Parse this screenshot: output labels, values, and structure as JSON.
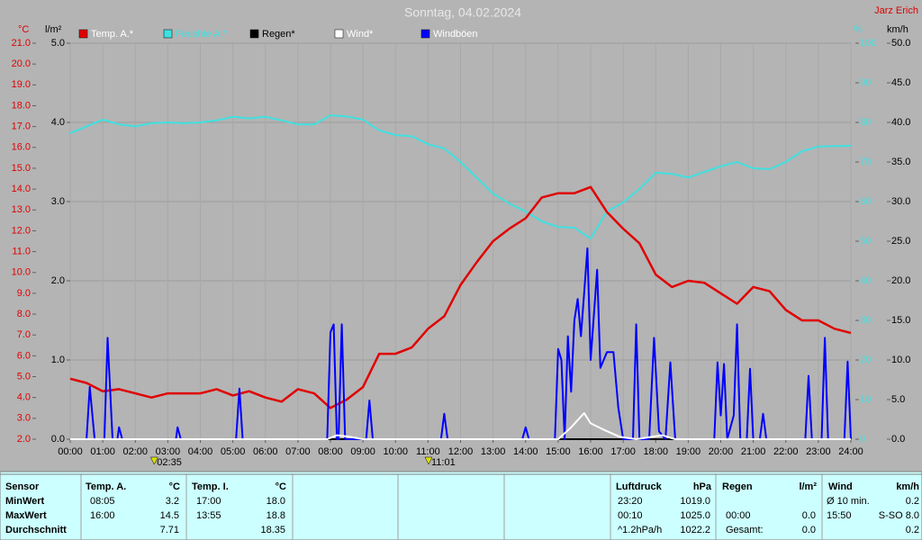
{
  "title": "Sonntag, 04.02.2024",
  "author": "Jarz Erich",
  "chart_data": {
    "type": "line",
    "ylabel": "°C",
    "rain_label": "l/m²",
    "y2label": "%",
    "wind_label": "km/h",
    "x": [
      0,
      0.5,
      1,
      1.5,
      2,
      2.5,
      3,
      3.5,
      4,
      4.5,
      5,
      5.5,
      6,
      6.5,
      7,
      7.5,
      8,
      8.5,
      9,
      9.5,
      10,
      10.5,
      11,
      11.5,
      12,
      12.5,
      13,
      13.5,
      14,
      14.5,
      15,
      15.5,
      16,
      16.5,
      17,
      17.5,
      18,
      18.5,
      19,
      19.5,
      20,
      20.5,
      21,
      21.5,
      22,
      22.5,
      23,
      23.5,
      24
    ],
    "xlim": [
      0,
      24
    ],
    "xticks": [
      {
        "value": 0,
        "label": "00:00"
      },
      {
        "value": 1,
        "label": "01:00"
      },
      {
        "value": 2,
        "label": "02:00"
      },
      {
        "value": 3,
        "label": "03:00"
      },
      {
        "value": 4,
        "label": "04:00"
      },
      {
        "value": 5,
        "label": "05:00"
      },
      {
        "value": 6,
        "label": "06:00"
      },
      {
        "value": 7,
        "label": "07:00"
      },
      {
        "value": 8,
        "label": "08:00"
      },
      {
        "value": 9,
        "label": "09:00"
      },
      {
        "value": 10,
        "label": "10:00"
      },
      {
        "value": 11,
        "label": "11:00"
      },
      {
        "value": 12,
        "label": "12:00"
      },
      {
        "value": 13,
        "label": "13:00"
      },
      {
        "value": 14,
        "label": "14:00"
      },
      {
        "value": 15,
        "label": "15:00"
      },
      {
        "value": 16,
        "label": "16:00"
      },
      {
        "value": 17,
        "label": "17:00"
      },
      {
        "value": 18,
        "label": "18:00"
      },
      {
        "value": 19,
        "label": "19:00"
      },
      {
        "value": 20,
        "label": "20:00"
      },
      {
        "value": 21,
        "label": "21:00"
      },
      {
        "value": 22,
        "label": "22:00"
      },
      {
        "value": 23,
        "label": "23:00"
      },
      {
        "value": 24,
        "label": "24:00"
      }
    ],
    "ylim": [
      2,
      21
    ],
    "yticks": [
      {
        "value": 2,
        "label": "2.0"
      },
      {
        "value": 3,
        "label": "3.0"
      },
      {
        "value": 4,
        "label": "4.0"
      },
      {
        "value": 5,
        "label": "5.0"
      },
      {
        "value": 6,
        "label": "6.0"
      },
      {
        "value": 7,
        "label": "7.0"
      },
      {
        "value": 8,
        "label": "8.0"
      },
      {
        "value": 9,
        "label": "9.0"
      },
      {
        "value": 10,
        "label": "10.0"
      },
      {
        "value": 11,
        "label": "11.0"
      },
      {
        "value": 12,
        "label": "12.0"
      },
      {
        "value": 13,
        "label": "13.0"
      },
      {
        "value": 14,
        "label": "14.0"
      },
      {
        "value": 15,
        "label": "15.0"
      },
      {
        "value": 16,
        "label": "16.0"
      },
      {
        "value": 17,
        "label": "17.0"
      },
      {
        "value": 18,
        "label": "18.0"
      },
      {
        "value": 19,
        "label": "19.0"
      },
      {
        "value": 20,
        "label": "20.0"
      },
      {
        "value": 21,
        "label": "21.0"
      }
    ],
    "rain_lim": [
      0,
      5
    ],
    "rain_ticks": [
      {
        "value": 0,
        "label": "0.0"
      },
      {
        "value": 1,
        "label": "1.0"
      },
      {
        "value": 2,
        "label": "2.0"
      },
      {
        "value": 3,
        "label": "3.0"
      },
      {
        "value": 4,
        "label": "4.0"
      },
      {
        "value": 5,
        "label": "5.0"
      }
    ],
    "y2lim": [
      0,
      100
    ],
    "y2ticks": [
      0,
      10,
      20,
      30,
      40,
      50,
      60,
      70,
      80,
      90,
      100
    ],
    "wind_lim": [
      0,
      50
    ],
    "wind_ticks": [
      {
        "value": 0,
        "label": "0.0"
      },
      {
        "value": 5,
        "label": "5.0"
      },
      {
        "value": 10,
        "label": "10.0"
      },
      {
        "value": 15,
        "label": "15.0"
      },
      {
        "value": 20,
        "label": "20.0"
      },
      {
        "value": 25,
        "label": "25.0"
      },
      {
        "value": 30,
        "label": "30.0"
      },
      {
        "value": 35,
        "label": "35.0"
      },
      {
        "value": 40,
        "label": "40.0"
      },
      {
        "value": 45,
        "label": "45.0"
      },
      {
        "value": 50,
        "label": "50.0"
      }
    ],
    "grid": true,
    "series": [
      {
        "name": "Temp. A.*",
        "color": "#e00000",
        "axis": "y",
        "values": [
          4.9,
          4.7,
          4.3,
          4.4,
          4.2,
          4.0,
          4.2,
          4.2,
          4.2,
          4.4,
          4.1,
          4.3,
          4.0,
          3.8,
          4.4,
          4.2,
          3.5,
          3.9,
          4.5,
          6.1,
          6.1,
          6.4,
          7.3,
          7.9,
          9.4,
          10.5,
          11.5,
          12.1,
          12.6,
          13.6,
          13.8,
          13.8,
          14.1,
          12.9,
          12.1,
          11.4,
          9.9,
          9.3,
          9.6,
          9.5,
          9.0,
          8.5,
          9.3,
          9.1,
          8.2,
          7.7,
          7.7,
          7.3,
          7.1
        ]
      },
      {
        "name": "Feuchte A.*",
        "color": "#40e0e0",
        "axis": "y2",
        "values": [
          77.3,
          79,
          80.7,
          79.5,
          79,
          79.8,
          80,
          79.8,
          80,
          80.5,
          81.4,
          81,
          81.4,
          80.5,
          79.5,
          79.5,
          81.8,
          81.5,
          80.7,
          78,
          76.8,
          76.5,
          74.5,
          73.4,
          70,
          66,
          62,
          59.5,
          57.5,
          55,
          53.6,
          53.4,
          50.7,
          57.5,
          59.8,
          63.2,
          67.3,
          67,
          66.1,
          67.5,
          68.9,
          70,
          68.4,
          68.2,
          70,
          72.7,
          73.9,
          74,
          74.1
        ]
      },
      {
        "name": "Regen*",
        "color": "#000000",
        "axis": "rain",
        "x": [
          0,
          24
        ],
        "values": [
          0,
          0
        ]
      },
      {
        "name": "Wind*",
        "color": "#ffffff",
        "axis": "wind",
        "x": [
          0,
          7.9,
          8.2,
          8.6,
          9,
          15,
          15.4,
          15.8,
          16,
          16.4,
          16.9,
          17.4,
          18.2,
          18.6,
          24
        ],
        "values": [
          0,
          0,
          0.5,
          0.3,
          0,
          0,
          1.5,
          3.3,
          2,
          1.2,
          0.3,
          0,
          0.5,
          0,
          0
        ]
      },
      {
        "name": "Windböen",
        "color": "#0000ff",
        "axis": "wind",
        "x": [
          0,
          0.5,
          0.6,
          0.75,
          1.05,
          1.15,
          1.3,
          1.45,
          1.5,
          1.6,
          3.25,
          3.3,
          3.4,
          5.1,
          5.2,
          5.3,
          7.9,
          8,
          8.1,
          8.2,
          8.25,
          8.35,
          8.45,
          9.1,
          9.2,
          9.3,
          11.4,
          11.5,
          11.6,
          13.9,
          14,
          14.1,
          14.9,
          15,
          15.1,
          15.2,
          15.3,
          15.4,
          15.5,
          15.6,
          15.7,
          15.8,
          15.9,
          16,
          16.2,
          16.3,
          16.5,
          16.7,
          16.85,
          17,
          17.3,
          17.4,
          17.5,
          17.8,
          17.95,
          18.1,
          18.3,
          18.45,
          18.6,
          19.8,
          19.9,
          20,
          20.1,
          20.2,
          20.4,
          20.5,
          20.6,
          20.8,
          20.9,
          21,
          21.2,
          21.3,
          21.4,
          22.6,
          22.7,
          22.8,
          23.1,
          23.2,
          23.3,
          23.8,
          23.9,
          24
        ],
        "values": [
          0,
          0,
          6.6,
          0,
          0,
          12.8,
          0,
          0,
          1.5,
          0,
          0,
          1.5,
          0,
          0,
          6.4,
          0,
          0,
          13.5,
          14.5,
          0,
          0,
          14.5,
          0,
          0,
          4.9,
          0,
          0,
          3.2,
          0,
          0,
          1.5,
          0,
          0,
          11.4,
          10,
          0,
          13,
          6,
          15,
          17.7,
          13,
          18.5,
          24.1,
          10,
          21.4,
          9,
          11,
          11,
          4,
          0,
          0,
          14.5,
          0,
          0,
          12.8,
          1,
          0,
          9.7,
          0,
          0,
          9.7,
          3,
          9.5,
          0,
          3,
          14.5,
          0,
          0,
          8.9,
          0,
          0,
          3.2,
          0,
          0,
          8,
          0,
          0,
          12.8,
          0,
          0,
          9.8,
          0
        ]
      }
    ],
    "annotations": [
      {
        "label": "02:35",
        "x": 2.583
      },
      {
        "label": "11:01",
        "x": 11.017
      }
    ]
  },
  "stats": {
    "headers": [
      "Sensor",
      "Temp. A.",
      "°C",
      "Temp. I.",
      "°C",
      "Luftdruck",
      "hPa",
      "Regen",
      "l/m²",
      "Wind",
      "km/h"
    ],
    "rows": [
      {
        "label": "MinWert",
        "cells": [
          "08:05",
          "3.2",
          "17:00",
          "18.0",
          "23:20",
          "1019.0",
          null,
          null,
          "Ø 10 min.",
          "0.2"
        ]
      },
      {
        "label": "MaxWert",
        "cells": [
          "16:00",
          "14.5",
          "13:55",
          "18.8",
          "00:10",
          "1025.0",
          "00:00",
          "0.0",
          "15:50",
          "S-SO 8.0"
        ]
      },
      {
        "label": "Durchschnitt",
        "cells": [
          null,
          "7.71",
          null,
          "18.35",
          "^1.2hPa/h",
          "1022.2",
          "Gesamt:",
          "0.0",
          null,
          "0.2"
        ]
      }
    ]
  }
}
